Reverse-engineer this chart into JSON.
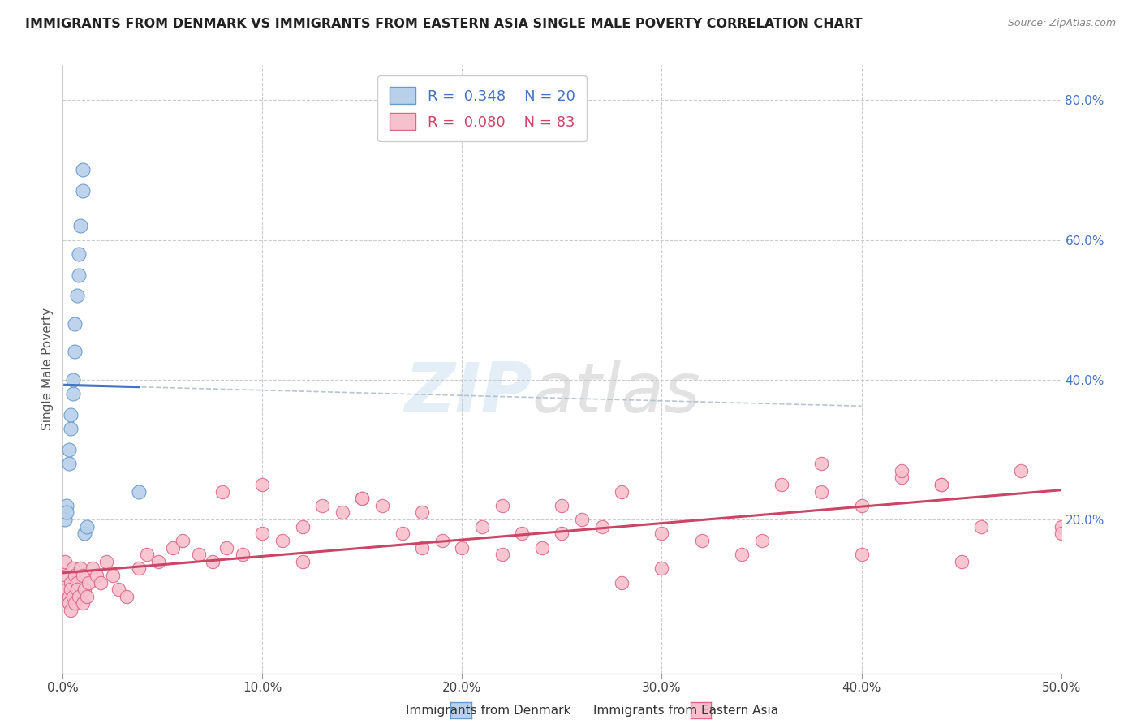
{
  "title": "IMMIGRANTS FROM DENMARK VS IMMIGRANTS FROM EASTERN ASIA SINGLE MALE POVERTY CORRELATION CHART",
  "source": "Source: ZipAtlas.com",
  "ylabel_left": "Single Male Poverty",
  "legend_blue_R": "0.348",
  "legend_blue_N": "20",
  "legend_pink_R": "0.080",
  "legend_pink_N": "83",
  "legend_label_blue": "Immigrants from Denmark",
  "legend_label_pink": "Immigrants from Eastern Asia",
  "xlim": [
    0.0,
    0.5
  ],
  "ylim": [
    -0.02,
    0.85
  ],
  "color_blue": "#b8d0ea",
  "color_blue_edge": "#6699cc",
  "color_blue_line": "#4472c4",
  "color_pink": "#f8c0cc",
  "color_pink_edge": "#dd6688",
  "color_pink_line": "#cc4466",
  "color_gray_dashed": "#aabbcc",
  "denmark_x": [
    0.001,
    0.002,
    0.002,
    0.003,
    0.003,
    0.004,
    0.004,
    0.005,
    0.005,
    0.006,
    0.006,
    0.007,
    0.008,
    0.008,
    0.009,
    0.01,
    0.01,
    0.011,
    0.012,
    0.038
  ],
  "denmark_y": [
    0.2,
    0.22,
    0.21,
    0.28,
    0.3,
    0.33,
    0.35,
    0.38,
    0.4,
    0.44,
    0.48,
    0.52,
    0.55,
    0.58,
    0.62,
    0.67,
    0.7,
    0.18,
    0.19,
    0.24
  ],
  "eastern_asia_x": [
    0.001,
    0.002,
    0.002,
    0.003,
    0.003,
    0.004,
    0.004,
    0.004,
    0.005,
    0.005,
    0.006,
    0.006,
    0.007,
    0.007,
    0.008,
    0.009,
    0.01,
    0.01,
    0.011,
    0.012,
    0.013,
    0.015,
    0.017,
    0.019,
    0.022,
    0.025,
    0.028,
    0.032,
    0.038,
    0.042,
    0.048,
    0.055,
    0.06,
    0.068,
    0.075,
    0.082,
    0.09,
    0.1,
    0.11,
    0.12,
    0.13,
    0.14,
    0.15,
    0.16,
    0.17,
    0.18,
    0.19,
    0.2,
    0.21,
    0.22,
    0.23,
    0.24,
    0.25,
    0.26,
    0.27,
    0.28,
    0.3,
    0.32,
    0.34,
    0.36,
    0.38,
    0.4,
    0.42,
    0.44,
    0.46,
    0.48,
    0.5,
    0.42,
    0.44,
    0.08,
    0.1,
    0.12,
    0.15,
    0.18,
    0.22,
    0.25,
    0.3,
    0.35,
    0.4,
    0.45,
    0.5,
    0.38,
    0.28
  ],
  "eastern_asia_y": [
    0.14,
    0.12,
    0.1,
    0.09,
    0.08,
    0.11,
    0.1,
    0.07,
    0.13,
    0.09,
    0.12,
    0.08,
    0.11,
    0.1,
    0.09,
    0.13,
    0.12,
    0.08,
    0.1,
    0.09,
    0.11,
    0.13,
    0.12,
    0.11,
    0.14,
    0.12,
    0.1,
    0.09,
    0.13,
    0.15,
    0.14,
    0.16,
    0.17,
    0.15,
    0.14,
    0.16,
    0.15,
    0.18,
    0.17,
    0.19,
    0.22,
    0.21,
    0.23,
    0.22,
    0.18,
    0.21,
    0.17,
    0.16,
    0.19,
    0.15,
    0.18,
    0.16,
    0.22,
    0.2,
    0.19,
    0.24,
    0.18,
    0.17,
    0.15,
    0.25,
    0.24,
    0.22,
    0.26,
    0.25,
    0.19,
    0.27,
    0.19,
    0.27,
    0.25,
    0.24,
    0.25,
    0.14,
    0.23,
    0.16,
    0.22,
    0.18,
    0.13,
    0.17,
    0.15,
    0.14,
    0.18,
    0.28,
    0.11
  ]
}
